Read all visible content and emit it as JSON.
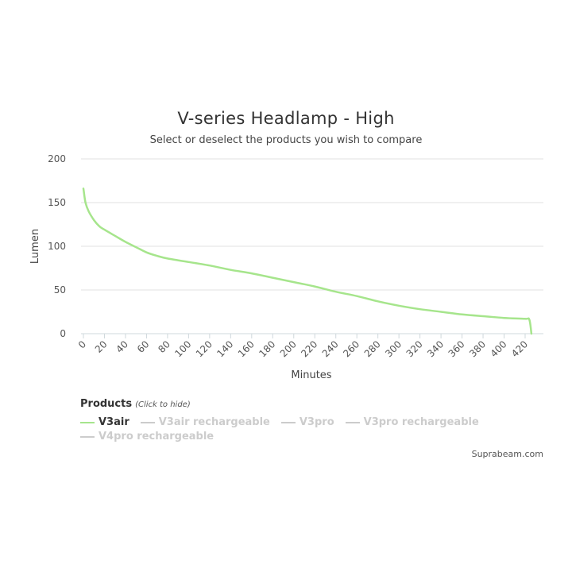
{
  "chart_data": {
    "type": "line",
    "title": "V-series Headlamp - High",
    "subtitle": "Select or deselect the products you wish to compare",
    "xlabel": "Minutes",
    "ylabel": "Lumen",
    "xlim": [
      0,
      428
    ],
    "ylim": [
      0,
      200
    ],
    "x_ticks": [
      0,
      20,
      40,
      60,
      80,
      100,
      120,
      140,
      160,
      180,
      200,
      220,
      240,
      260,
      280,
      300,
      320,
      340,
      360,
      380,
      400,
      420
    ],
    "y_ticks": [
      0,
      50,
      100,
      150,
      200
    ],
    "grid": true,
    "series": [
      {
        "name": "V3air",
        "visible": true,
        "color": "#a6e58c",
        "points": [
          [
            0,
            166
          ],
          [
            2,
            150
          ],
          [
            5,
            140
          ],
          [
            10,
            130
          ],
          [
            15,
            123
          ],
          [
            20,
            119
          ],
          [
            30,
            112
          ],
          [
            40,
            105
          ],
          [
            50,
            99
          ],
          [
            60,
            93
          ],
          [
            70,
            89
          ],
          [
            80,
            86
          ],
          [
            100,
            82
          ],
          [
            120,
            78
          ],
          [
            140,
            73
          ],
          [
            160,
            69
          ],
          [
            180,
            64
          ],
          [
            200,
            59
          ],
          [
            220,
            54
          ],
          [
            240,
            48
          ],
          [
            260,
            43
          ],
          [
            280,
            37
          ],
          [
            300,
            32
          ],
          [
            320,
            28
          ],
          [
            340,
            25
          ],
          [
            360,
            22
          ],
          [
            380,
            20
          ],
          [
            400,
            18
          ],
          [
            420,
            17
          ],
          [
            424,
            16
          ],
          [
            426,
            0
          ]
        ]
      },
      {
        "name": "V3air rechargeable",
        "visible": false,
        "color": "#cccccc",
        "points": []
      },
      {
        "name": "V3pro",
        "visible": false,
        "color": "#cccccc",
        "points": []
      },
      {
        "name": "V3pro rechargeable",
        "visible": false,
        "color": "#cccccc",
        "points": []
      },
      {
        "name": "V4pro rechargeable",
        "visible": false,
        "color": "#cccccc",
        "points": []
      }
    ]
  },
  "legend": {
    "title": "Products",
    "hint": "(Click to hide)",
    "items": [
      {
        "label": "V3air",
        "active": true,
        "color": "#a6e58c"
      },
      {
        "label": "V3air rechargeable",
        "active": false,
        "color": "#cccccc"
      },
      {
        "label": "V3pro",
        "active": false,
        "color": "#cccccc"
      },
      {
        "label": "V3pro rechargeable",
        "active": false,
        "color": "#cccccc"
      },
      {
        "label": "V4pro rechargeable",
        "active": false,
        "color": "#cccccc"
      }
    ]
  },
  "credit": "Suprabeam.com",
  "colors": {
    "grid": "#e0e0e0",
    "axis_text": "#555555",
    "inactive": "#cccccc"
  }
}
